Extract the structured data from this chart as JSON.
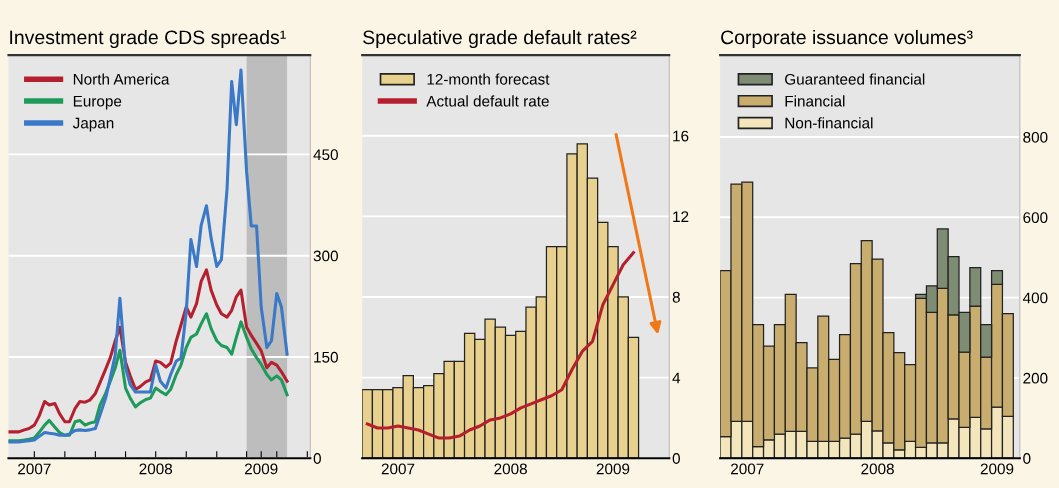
{
  "chart_data": [
    {
      "type": "line",
      "title": "Investment grade CDS spreads¹",
      "x": [
        "2007-04-15",
        "2007-05-01",
        "2007-05-15",
        "2007-06-01",
        "2007-06-15",
        "2007-07-01",
        "2007-07-15",
        "2007-08-01",
        "2007-08-15",
        "2007-09-01",
        "2007-09-15",
        "2007-10-01",
        "2007-10-15",
        "2007-11-01",
        "2007-11-15",
        "2007-12-01",
        "2007-12-15",
        "2008-01-01",
        "2008-01-15",
        "2008-02-01",
        "2008-02-15",
        "2008-03-01",
        "2008-03-15",
        "2008-04-01",
        "2008-04-15",
        "2008-05-01",
        "2008-05-15",
        "2008-06-01",
        "2008-06-15",
        "2008-07-01",
        "2008-07-15",
        "2008-08-01",
        "2008-08-15",
        "2008-09-01",
        "2008-09-15",
        "2008-10-01",
        "2008-10-15",
        "2008-11-01",
        "2008-11-15",
        "2008-12-01",
        "2008-12-15",
        "2009-01-01",
        "2009-01-15",
        "2009-02-01",
        "2009-02-15",
        "2009-03-01",
        "2009-03-15",
        "2009-04-01",
        "2009-04-15",
        "2009-05-01",
        "2009-05-15",
        "2009-06-01",
        "2009-06-15",
        "2009-07-01",
        "2009-07-15",
        "2009-08-01"
      ],
      "series": [
        {
          "name": "North America",
          "color": "#b5202e",
          "values": [
            39,
            39,
            39,
            42,
            44,
            49,
            62,
            84,
            79,
            81,
            66,
            54,
            54,
            74,
            84,
            83,
            86,
            96,
            112,
            132,
            149,
            174,
            194,
            142,
            122,
            102,
            106,
            113,
            116,
            144,
            142,
            135,
            141,
            174,
            197,
            224,
            209,
            229,
            262,
            279,
            249,
            227,
            214,
            209,
            219,
            239,
            249,
            194,
            182,
            170,
            159,
            134,
            142,
            138,
            128,
            114
          ]
        },
        {
          "name": "Europe",
          "color": "#1e9a5a",
          "values": [
            26,
            26,
            26,
            27,
            28,
            30,
            38,
            49,
            56,
            46,
            38,
            34,
            34,
            54,
            56,
            49,
            52,
            54,
            79,
            96,
            114,
            134,
            160,
            104,
            89,
            76,
            82,
            87,
            89,
            104,
            99,
            94,
            102,
            124,
            138,
            164,
            179,
            184,
            199,
            214,
            192,
            174,
            167,
            164,
            154,
            179,
            202,
            179,
            162,
            149,
            139,
            124,
            116,
            122,
            116,
            94
          ]
        },
        {
          "name": "Japan",
          "color": "#3a78c8",
          "values": [
            24,
            24,
            24,
            25,
            26,
            27,
            32,
            38,
            37,
            36,
            34,
            34,
            36,
            41,
            42,
            41,
            42,
            44,
            64,
            89,
            119,
            153,
            237,
            134,
            109,
            98,
            98,
            98,
            98,
            138,
            114,
            104,
            124,
            144,
            148,
            217,
            324,
            284,
            345,
            374,
            326,
            284,
            294,
            399,
            558,
            494,
            575,
            424,
            344,
            344,
            224,
            164,
            174,
            244,
            224,
            154
          ]
        }
      ],
      "ylim": [
        0,
        597
      ],
      "yticks": [
        0,
        150,
        300,
        450
      ],
      "xlim": [
        "2007-04-14",
        "2009-10-10"
      ],
      "xticks": [
        {
          "value": "2007-07-01",
          "label": "2007"
        },
        {
          "value": "2007-10-01",
          "label": null
        },
        {
          "value": "2008-01-01",
          "label": null
        },
        {
          "value": "2008-04-01",
          "label": null
        },
        {
          "value": "2008-07-01",
          "label": "2008"
        },
        {
          "value": "2008-10-01",
          "label": null
        },
        {
          "value": "2009-01-01",
          "label": null
        },
        {
          "value": "2009-04-01",
          "label": null
        },
        {
          "value": "2009-05-15",
          "label": "2009"
        },
        {
          "value": "2009-07-01",
          "label": null
        },
        {
          "value": "2009-10-01",
          "label": null
        }
      ],
      "bands": [
        {
          "axis": "x",
          "from": "2009-04-01",
          "to": "2009-08-01",
          "color": "#bdbdbd"
        }
      ],
      "grid": "y",
      "legend": "top left"
    },
    {
      "type": "bar",
      "title": "Speculative grade default rates²",
      "categories": [
        null,
        null,
        null,
        "2007",
        null,
        null,
        null,
        null,
        null,
        null,
        null,
        null,
        null,
        null,
        "2008",
        null,
        null,
        null,
        null,
        null,
        null,
        null,
        null,
        null,
        "2009",
        null,
        null
      ],
      "series": [
        {
          "name": "12-month forecast",
          "color": "#e8d08f",
          "values": [
            3.4,
            3.4,
            3.4,
            3.5,
            4.1,
            3.5,
            3.6,
            4.2,
            4.8,
            4.8,
            6.2,
            5.9,
            6.9,
            6.5,
            6.1,
            6.3,
            7.5,
            8.0,
            10.5,
            10.5,
            15.1,
            15.6,
            13.9,
            11.7,
            10.5,
            8.0,
            6.0
          ]
        },
        {
          "name": "Actual default rate",
          "type": "line",
          "color": "#b5202e",
          "values": [
            1.7,
            1.5,
            1.5,
            1.6,
            1.5,
            1.4,
            1.2,
            1.0,
            1.0,
            1.1,
            1.4,
            1.6,
            1.9,
            2.0,
            2.2,
            2.5,
            2.7,
            2.9,
            3.1,
            3.4,
            4.4,
            5.3,
            5.8,
            7.6,
            8.6,
            9.6,
            10.2
          ]
        }
      ],
      "ylim": [
        0,
        20
      ],
      "yticks": [
        0,
        4,
        8,
        12,
        16
      ],
      "grid": "y",
      "legend": "top left"
    },
    {
      "type": "bar",
      "title": "Corporate issuance volumes³",
      "stacked": true,
      "categories": [
        null,
        null,
        "2007",
        null,
        null,
        null,
        null,
        null,
        null,
        null,
        null,
        null,
        null,
        null,
        "2008",
        null,
        null,
        null,
        null,
        null,
        null,
        null,
        null,
        null,
        null,
        "2009",
        null
      ],
      "series": [
        {
          "name": "Non-financial",
          "color": "#f3e6bc",
          "values": [
            54,
            92,
            92,
            29,
            46,
            60,
            67,
            67,
            42,
            42,
            42,
            50,
            60,
            92,
            68,
            38,
            21,
            42,
            27,
            38,
            38,
            98,
            77,
            102,
            73,
            127,
            104
          ]
        },
        {
          "name": "Financial",
          "color": "#c9ad6e",
          "values": [
            413,
            591,
            596,
            304,
            233,
            273,
            341,
            221,
            183,
            312,
            204,
            258,
            425,
            450,
            428,
            275,
            242,
            191,
            371,
            325,
            385,
            259,
            187,
            277,
            179,
            306,
            256
          ]
        },
        {
          "name": "Guaranteed financial",
          "color": "#7d8c72",
          "values": [
            null,
            null,
            null,
            null,
            null,
            null,
            null,
            null,
            null,
            null,
            null,
            null,
            null,
            null,
            null,
            null,
            null,
            null,
            10,
            66,
            148,
            145,
            99,
            96,
            81,
            34,
            null
          ]
        }
      ],
      "ylim": [
        0,
        1004
      ],
      "yticks": [
        0,
        200,
        400,
        600,
        800
      ],
      "grid": "y",
      "legend": "top left"
    }
  ]
}
